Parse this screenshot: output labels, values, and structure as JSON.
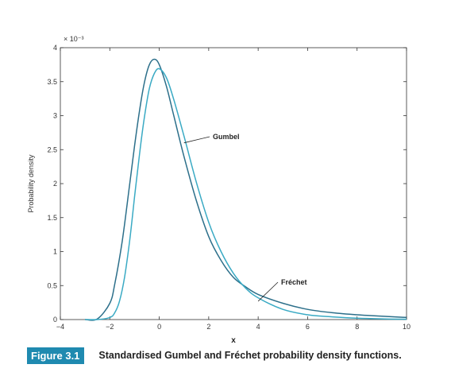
{
  "chart_data": {
    "type": "line",
    "xlabel": "x",
    "ylabel": "Probability density",
    "y_exponent_label": "× 10⁻³",
    "xlim": [
      -4,
      10
    ],
    "ylim": [
      0,
      4
    ],
    "x_ticks": [
      -4,
      -2,
      0,
      2,
      4,
      6,
      8,
      10
    ],
    "y_ticks": [
      0,
      0.5,
      1,
      1.5,
      2,
      2.5,
      3,
      3.5,
      4
    ],
    "grid": false,
    "series": [
      {
        "name": "Gumbel",
        "color": "#2c6f8a",
        "x": [
          -3,
          -2.5,
          -2,
          -1.8,
          -1.5,
          -1.2,
          -1.0,
          -0.8,
          -0.6,
          -0.4,
          -0.2,
          0,
          0.3,
          0.6,
          1.0,
          1.5,
          2.0,
          2.5,
          3.0,
          3.5,
          4.0,
          5.0,
          6.0,
          7.0,
          8.0,
          9.0,
          10.0
        ],
        "values": [
          0.0,
          0.01,
          0.24,
          0.52,
          1.15,
          1.98,
          2.55,
          3.07,
          3.49,
          3.75,
          3.83,
          3.75,
          3.42,
          2.98,
          2.4,
          1.75,
          1.22,
          0.87,
          0.62,
          0.48,
          0.37,
          0.24,
          0.15,
          0.1,
          0.07,
          0.05,
          0.03
        ]
      },
      {
        "name": "Fréchet",
        "color": "#3aaac4",
        "x": [
          -3,
          -2.5,
          -2,
          -1.8,
          -1.6,
          -1.4,
          -1.2,
          -1.0,
          -0.8,
          -0.6,
          -0.4,
          -0.2,
          0,
          0.3,
          0.6,
          1.0,
          1.5,
          2.0,
          2.5,
          3.0,
          3.5,
          4.0,
          5.0,
          6.0,
          7.0,
          8.0,
          9.0,
          10.0
        ],
        "values": [
          0.0,
          0.0,
          0.03,
          0.1,
          0.28,
          0.63,
          1.15,
          1.8,
          2.43,
          2.98,
          3.4,
          3.62,
          3.69,
          3.55,
          3.22,
          2.7,
          2.02,
          1.43,
          1.0,
          0.68,
          0.46,
          0.32,
          0.15,
          0.07,
          0.04,
          0.02,
          0.01,
          0.005
        ]
      }
    ],
    "annotations": [
      {
        "text": "Gumbel",
        "arrow_to": [
          1.0,
          2.6
        ]
      },
      {
        "text": "Fréchet",
        "arrow_to": [
          4.0,
          0.27
        ]
      }
    ]
  },
  "caption": {
    "label": "Figure 3.1",
    "text": "Standardised Gumbel and Fréchet probability density functions."
  }
}
